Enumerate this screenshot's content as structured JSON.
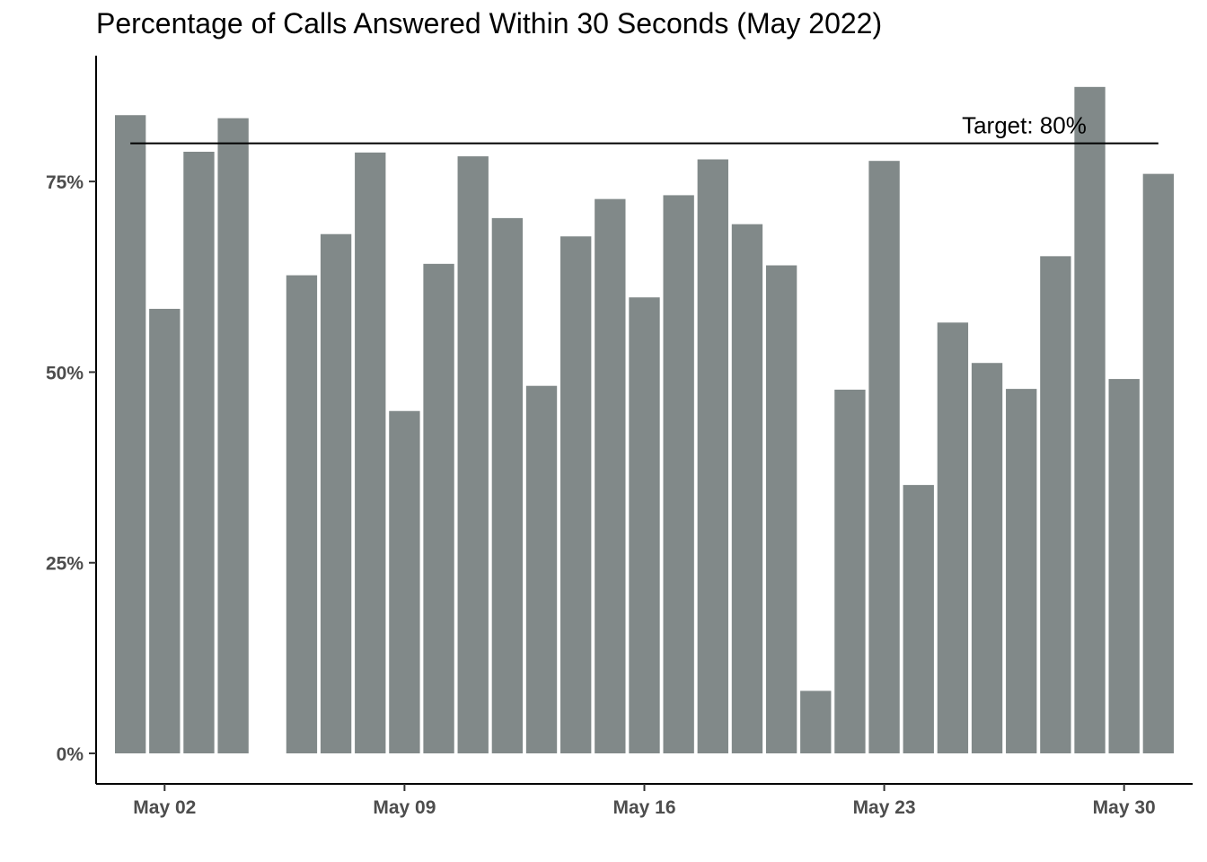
{
  "chart_data": {
    "type": "bar",
    "title": "Percentage of Calls Answered Within 30 Seconds (May 2022)",
    "xlabel": "",
    "ylabel": "",
    "bar_color": "#818989",
    "axis_color": "#000000",
    "grid": false,
    "ylim": [
      -0.04,
      0.915
    ],
    "xlim": [
      "2022-04-30",
      "2022-06-01"
    ],
    "y_ticks": [
      0,
      0.25,
      0.5,
      0.75
    ],
    "y_tick_labels": [
      "0%",
      "25%",
      "50%",
      "75%"
    ],
    "x_ticks": [
      "2022-05-02",
      "2022-05-09",
      "2022-05-16",
      "2022-05-23",
      "2022-05-30"
    ],
    "x_tick_labels": [
      "May 02",
      "May 09",
      "May 16",
      "May 23",
      "May 30"
    ],
    "dates": [
      "2022-05-01",
      "2022-05-02",
      "2022-05-03",
      "2022-05-04",
      "2022-05-06",
      "2022-05-07",
      "2022-05-08",
      "2022-05-09",
      "2022-05-10",
      "2022-05-11",
      "2022-05-12",
      "2022-05-13",
      "2022-05-14",
      "2022-05-15",
      "2022-05-16",
      "2022-05-17",
      "2022-05-18",
      "2022-05-19",
      "2022-05-20",
      "2022-05-21",
      "2022-05-22",
      "2022-05-23",
      "2022-05-24",
      "2022-05-25",
      "2022-05-26",
      "2022-05-27",
      "2022-05-28",
      "2022-05-29",
      "2022-05-30",
      "2022-05-31"
    ],
    "values": [
      0.837,
      0.583,
      0.789,
      0.833,
      0.627,
      0.681,
      0.788,
      0.449,
      0.642,
      0.783,
      0.702,
      0.482,
      0.678,
      0.727,
      0.598,
      0.732,
      0.779,
      0.694,
      0.64,
      0.082,
      0.477,
      0.777,
      0.352,
      0.565,
      0.512,
      0.478,
      0.652,
      0.874,
      0.491,
      0.76
    ],
    "reference_line": {
      "y": 0.8,
      "x_start": "2022-05-01",
      "x_end": "2022-05-31",
      "label": "Target: 80%"
    }
  }
}
